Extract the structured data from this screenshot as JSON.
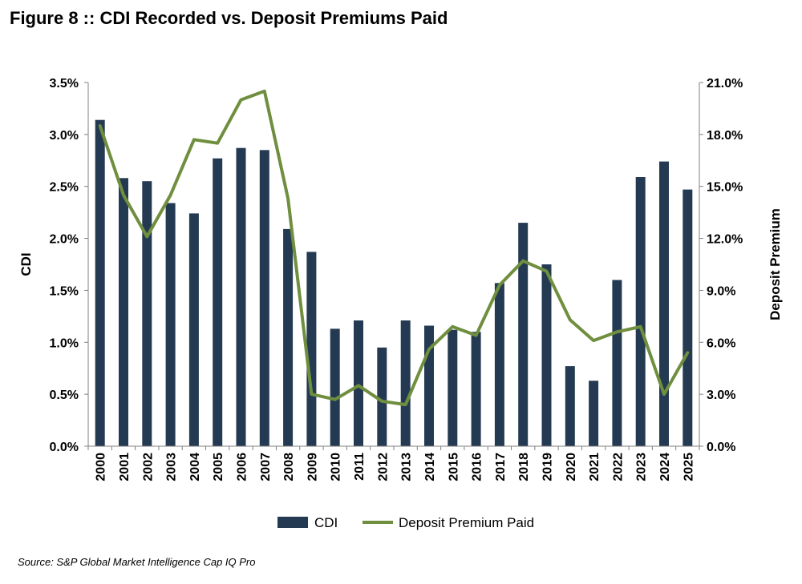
{
  "title": "Figure 8 :: CDI Recorded vs. Deposit Premiums Paid",
  "source": "Source: S&P Global Market Intelligence Cap IQ Pro",
  "colors": {
    "bar": "#243a52",
    "line": "#6f8f3f"
  },
  "chart_data": {
    "type": "bar",
    "categories": [
      "2000",
      "2001",
      "2002",
      "2003",
      "2004",
      "2005",
      "2006",
      "2007",
      "2008",
      "2009",
      "2010",
      "2011",
      "2012",
      "2013",
      "2014",
      "2015",
      "2016",
      "2017",
      "2018",
      "2019",
      "2020",
      "2021",
      "2022",
      "2023",
      "2024",
      "2025"
    ],
    "series": [
      {
        "name": "CDI",
        "type": "bar",
        "axis": "left",
        "values": [
          3.14,
          2.58,
          2.55,
          2.34,
          2.24,
          2.77,
          2.87,
          2.85,
          2.09,
          1.87,
          1.13,
          1.21,
          0.95,
          1.21,
          1.16,
          1.12,
          1.1,
          1.57,
          2.15,
          1.75,
          0.77,
          0.63,
          1.6,
          2.59,
          2.74,
          2.47
        ]
      },
      {
        "name": "Deposit Premium Paid",
        "type": "line",
        "axis": "right",
        "values": [
          18.5,
          14.5,
          12.1,
          14.5,
          17.7,
          17.5,
          20.0,
          20.5,
          14.3,
          3.0,
          2.7,
          3.5,
          2.6,
          2.4,
          5.6,
          6.9,
          6.4,
          9.3,
          10.7,
          10.1,
          7.3,
          6.1,
          6.6,
          6.9,
          3.0,
          5.4
        ]
      }
    ],
    "y_left": {
      "label": "CDI",
      "min": 0,
      "max": 3.5,
      "step": 0.5,
      "tick_labels": [
        "0.0%",
        "0.5%",
        "1.0%",
        "1.5%",
        "2.0%",
        "2.5%",
        "3.0%",
        "3.5%"
      ]
    },
    "y_right": {
      "label": "Deposit Premium",
      "min": 0,
      "max": 21,
      "step": 3,
      "tick_labels": [
        "0.0%",
        "3.0%",
        "6.0%",
        "9.0%",
        "12.0%",
        "15.0%",
        "18.0%",
        "21.0%"
      ]
    },
    "legend": [
      "CDI",
      "Deposit Premium Paid"
    ],
    "grid": false
  }
}
